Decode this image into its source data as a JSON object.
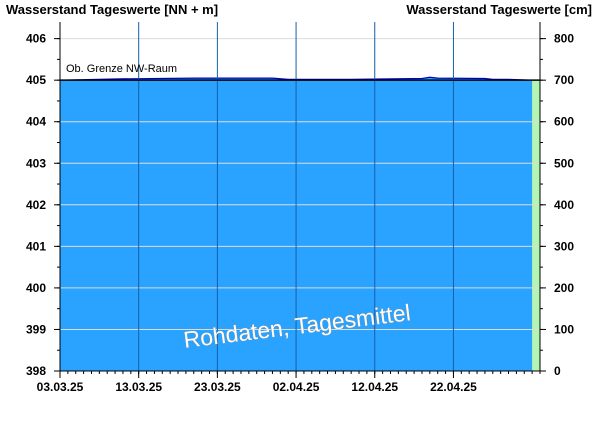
{
  "chart_data": {
    "type": "area",
    "y_left_label": "Wasserstand Tageswerte [NN + m]",
    "y_right_label": "Wasserstand Tageswerte [cm]",
    "y_left_range": [
      398,
      406.4
    ],
    "y_right_range": [
      0,
      840
    ],
    "y_left_ticks": [
      "398",
      "399",
      "400",
      "401",
      "402",
      "403",
      "404",
      "405",
      "406"
    ],
    "y_right_ticks": [
      "0",
      "100",
      "200",
      "300",
      "400",
      "500",
      "600",
      "700",
      "800"
    ],
    "x_range": [
      "2025-03-03",
      "2025-05-03"
    ],
    "x_ticks": [
      {
        "date": "2025-03-03",
        "label": "03.03.25"
      },
      {
        "date": "2025-03-13",
        "label": "13.03.25"
      },
      {
        "date": "2025-03-23",
        "label": "23.03.25"
      },
      {
        "date": "2025-04-02",
        "label": "02.04.25"
      },
      {
        "date": "2025-04-12",
        "label": "12.04.25"
      },
      {
        "date": "2025-04-22",
        "label": "22.04.25"
      }
    ],
    "threshold": {
      "label": "Ob. Grenze NW-Raum",
      "value": 405.0
    },
    "series": [
      {
        "color": "#29a3ff",
        "points": [
          [
            "2025-03-03",
            405.0
          ],
          [
            "2025-03-10",
            405.03
          ],
          [
            "2025-03-20",
            405.05
          ],
          [
            "2025-03-30",
            405.05
          ],
          [
            "2025-04-01",
            405.02
          ],
          [
            "2025-04-09",
            405.02
          ],
          [
            "2025-04-18",
            405.04
          ],
          [
            "2025-04-19",
            405.07
          ],
          [
            "2025-04-20",
            405.05
          ],
          [
            "2025-04-26",
            405.04
          ],
          [
            "2025-04-27",
            405.02
          ],
          [
            "2025-04-29",
            405.02
          ],
          [
            "2025-05-02",
            405.0
          ]
        ]
      }
    ],
    "future_band_color": "#b3f5b3",
    "fill_color": "#29a3ff",
    "outline_color": "#0000cc",
    "gridline_color": "#1560a8",
    "watermark": "Rohdaten, Tagesmittel"
  }
}
